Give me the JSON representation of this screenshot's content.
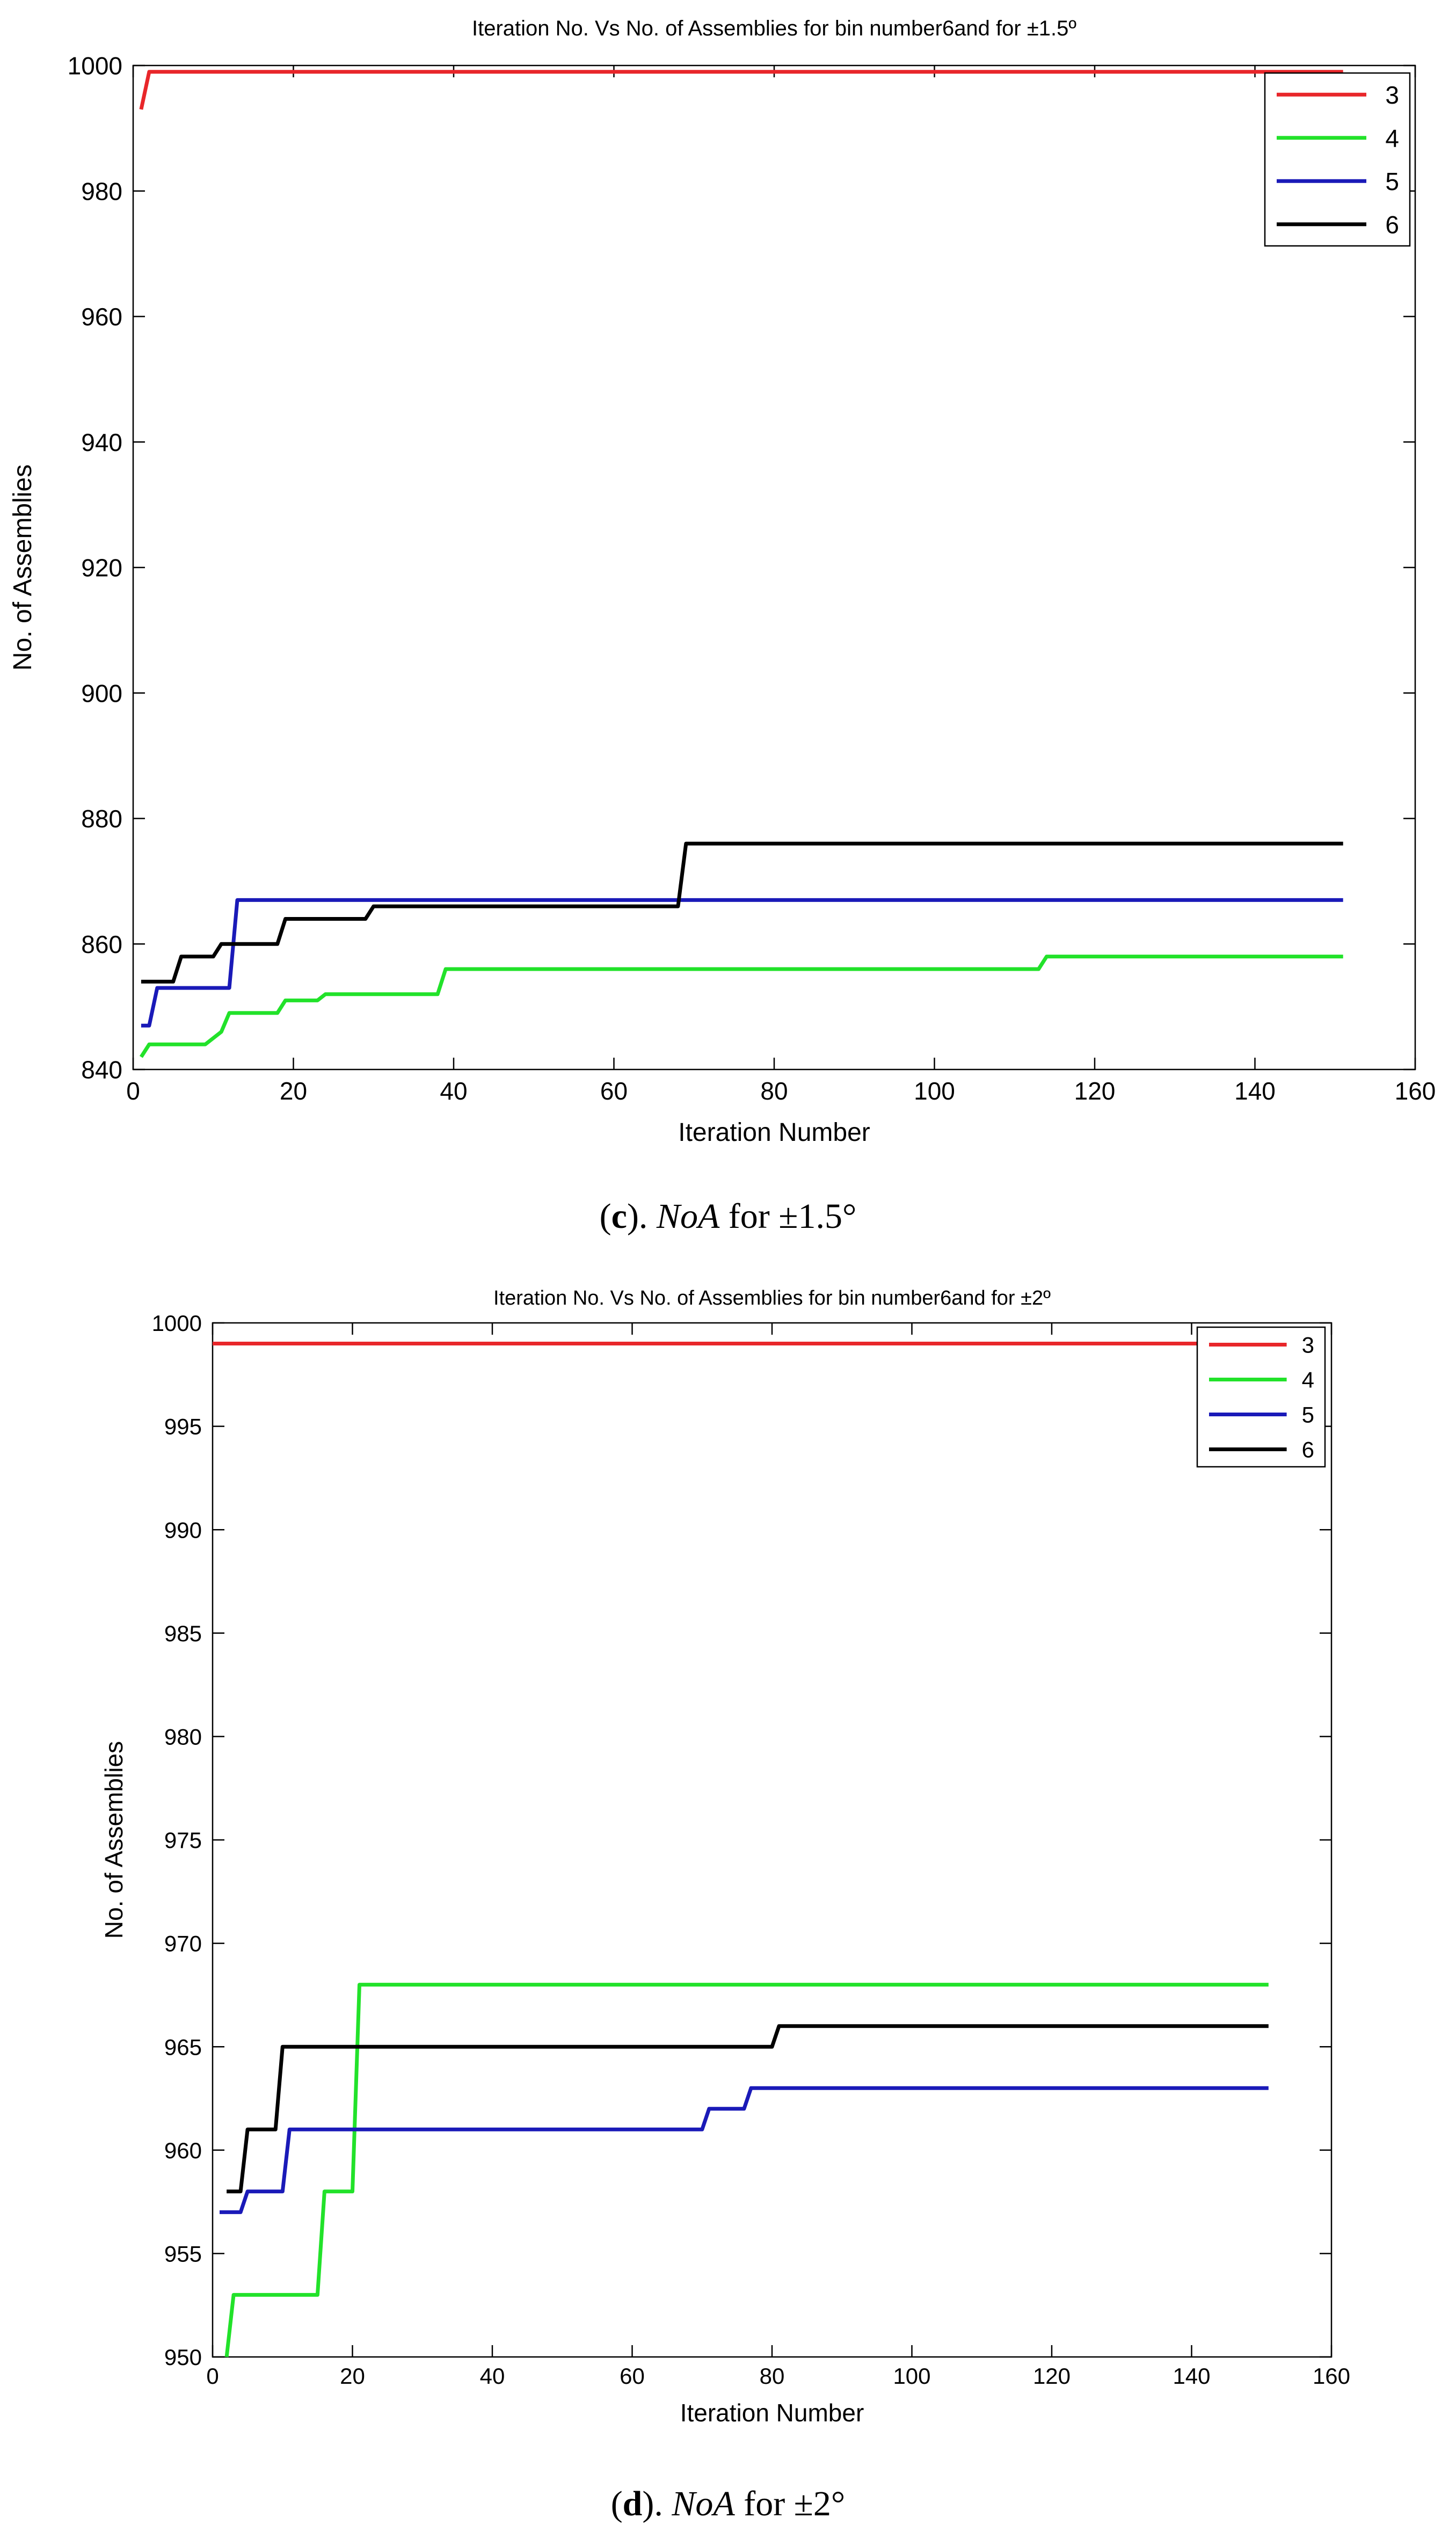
{
  "figure": {
    "panel_c_caption": {
      "open": "(",
      "letter": "c",
      "close": ").",
      "var": "NoA",
      "rest": "for ±1.5°"
    },
    "panel_d_caption": {
      "open": "(",
      "letter": "d",
      "close": ").",
      "var": "NoA",
      "rest": "for ±2°"
    }
  },
  "colors": {
    "s3": "#e8262a",
    "s4": "#22e22a",
    "s5": "#1a1ab8",
    "s6": "#000000"
  },
  "chart_data": [
    {
      "type": "line",
      "title": "Iteration No. Vs No. of Assemblies for bin number6and for ±1.5º",
      "xlabel": "Iteration Number",
      "ylabel": "No. of Assemblies",
      "xlim": [
        0,
        160
      ],
      "ylim": [
        840,
        1000
      ],
      "xticks": [
        0,
        20,
        40,
        60,
        80,
        100,
        120,
        140,
        160
      ],
      "yticks": [
        840,
        860,
        880,
        900,
        920,
        940,
        960,
        980,
        1000
      ],
      "legend_position": "top-right",
      "series": [
        {
          "name": "3",
          "color": "#e8262a",
          "points": [
            [
              1,
              993
            ],
            [
              2,
              999
            ],
            [
              151,
              999
            ]
          ]
        },
        {
          "name": "4",
          "color": "#22e22a",
          "points": [
            [
              1,
              842
            ],
            [
              2,
              844
            ],
            [
              9,
              844
            ],
            [
              11,
              846
            ],
            [
              12,
              849
            ],
            [
              18,
              849
            ],
            [
              19,
              851
            ],
            [
              23,
              851
            ],
            [
              24,
              852
            ],
            [
              38,
              852
            ],
            [
              39,
              856
            ],
            [
              113,
              856
            ],
            [
              114,
              858
            ],
            [
              151,
              858
            ]
          ]
        },
        {
          "name": "5",
          "color": "#1a1ab8",
          "points": [
            [
              1,
              847
            ],
            [
              2,
              847
            ],
            [
              3,
              853
            ],
            [
              12,
              853
            ],
            [
              13,
              867
            ],
            [
              151,
              867
            ]
          ]
        },
        {
          "name": "6",
          "color": "#000000",
          "points": [
            [
              1,
              854
            ],
            [
              5,
              854
            ],
            [
              6,
              858
            ],
            [
              10,
              858
            ],
            [
              11,
              860
            ],
            [
              18,
              860
            ],
            [
              19,
              864
            ],
            [
              29,
              864
            ],
            [
              30,
              866
            ],
            [
              68,
              866
            ],
            [
              69,
              876
            ],
            [
              151,
              876
            ]
          ]
        }
      ]
    },
    {
      "type": "line",
      "title": "Iteration No. Vs No. of Assemblies for bin number6and for ±2º",
      "xlabel": "Iteration Number",
      "ylabel": "No. of Assemblies",
      "xlim": [
        0,
        160
      ],
      "ylim": [
        950,
        1000
      ],
      "xticks": [
        0,
        20,
        40,
        60,
        80,
        100,
        120,
        140,
        160
      ],
      "yticks": [
        950,
        955,
        960,
        965,
        970,
        975,
        980,
        985,
        990,
        995,
        1000
      ],
      "legend_position": "top-right",
      "series": [
        {
          "name": "3",
          "color": "#e8262a",
          "points": [
            [
              0,
              999
            ],
            [
              151,
              999
            ]
          ]
        },
        {
          "name": "4",
          "color": "#22e22a",
          "points": [
            [
              2,
              950
            ],
            [
              3,
              953
            ],
            [
              15,
              953
            ],
            [
              16,
              958
            ],
            [
              20,
              958
            ],
            [
              21,
              968
            ],
            [
              151,
              968
            ]
          ]
        },
        {
          "name": "5",
          "color": "#1a1ab8",
          "points": [
            [
              1,
              957
            ],
            [
              4,
              957
            ],
            [
              5,
              958
            ],
            [
              10,
              958
            ],
            [
              11,
              961
            ],
            [
              70,
              961
            ],
            [
              71,
              962
            ],
            [
              76,
              962
            ],
            [
              77,
              963
            ],
            [
              151,
              963
            ]
          ]
        },
        {
          "name": "6",
          "color": "#000000",
          "points": [
            [
              2,
              958
            ],
            [
              4,
              958
            ],
            [
              5,
              961
            ],
            [
              9,
              961
            ],
            [
              10,
              965
            ],
            [
              80,
              965
            ],
            [
              81,
              966
            ],
            [
              151,
              966
            ]
          ]
        }
      ]
    }
  ]
}
